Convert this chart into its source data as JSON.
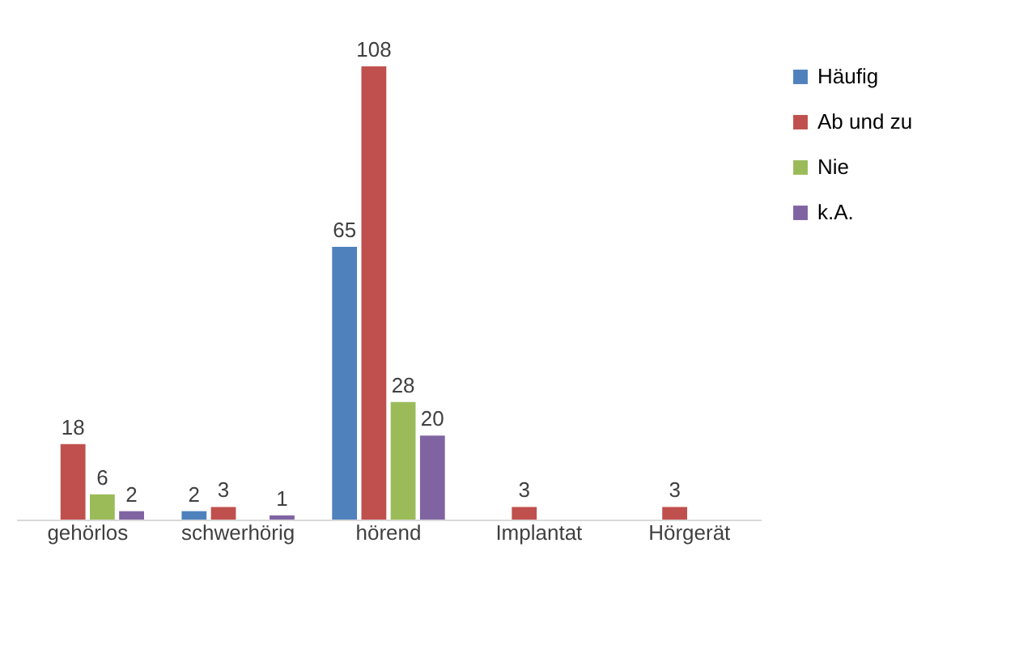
{
  "chart_data": {
    "type": "bar",
    "categories": [
      "gehörlos",
      "schwerhörig",
      "hörend",
      "Implantat",
      "Hörgerät"
    ],
    "series": [
      {
        "name": "Häufig",
        "color": "#4f81bd",
        "values": [
          null,
          2,
          65,
          null,
          null
        ]
      },
      {
        "name": "Ab und zu",
        "color": "#c0504d",
        "values": [
          18,
          3,
          108,
          3,
          3
        ]
      },
      {
        "name": "Nie",
        "color": "#9bbb59",
        "values": [
          6,
          null,
          28,
          null,
          null
        ]
      },
      {
        "name": "k.A.",
        "color": "#8064a2",
        "values": [
          2,
          1,
          20,
          null,
          null
        ]
      }
    ],
    "data_labels": true,
    "legend": "right",
    "grid": false
  }
}
